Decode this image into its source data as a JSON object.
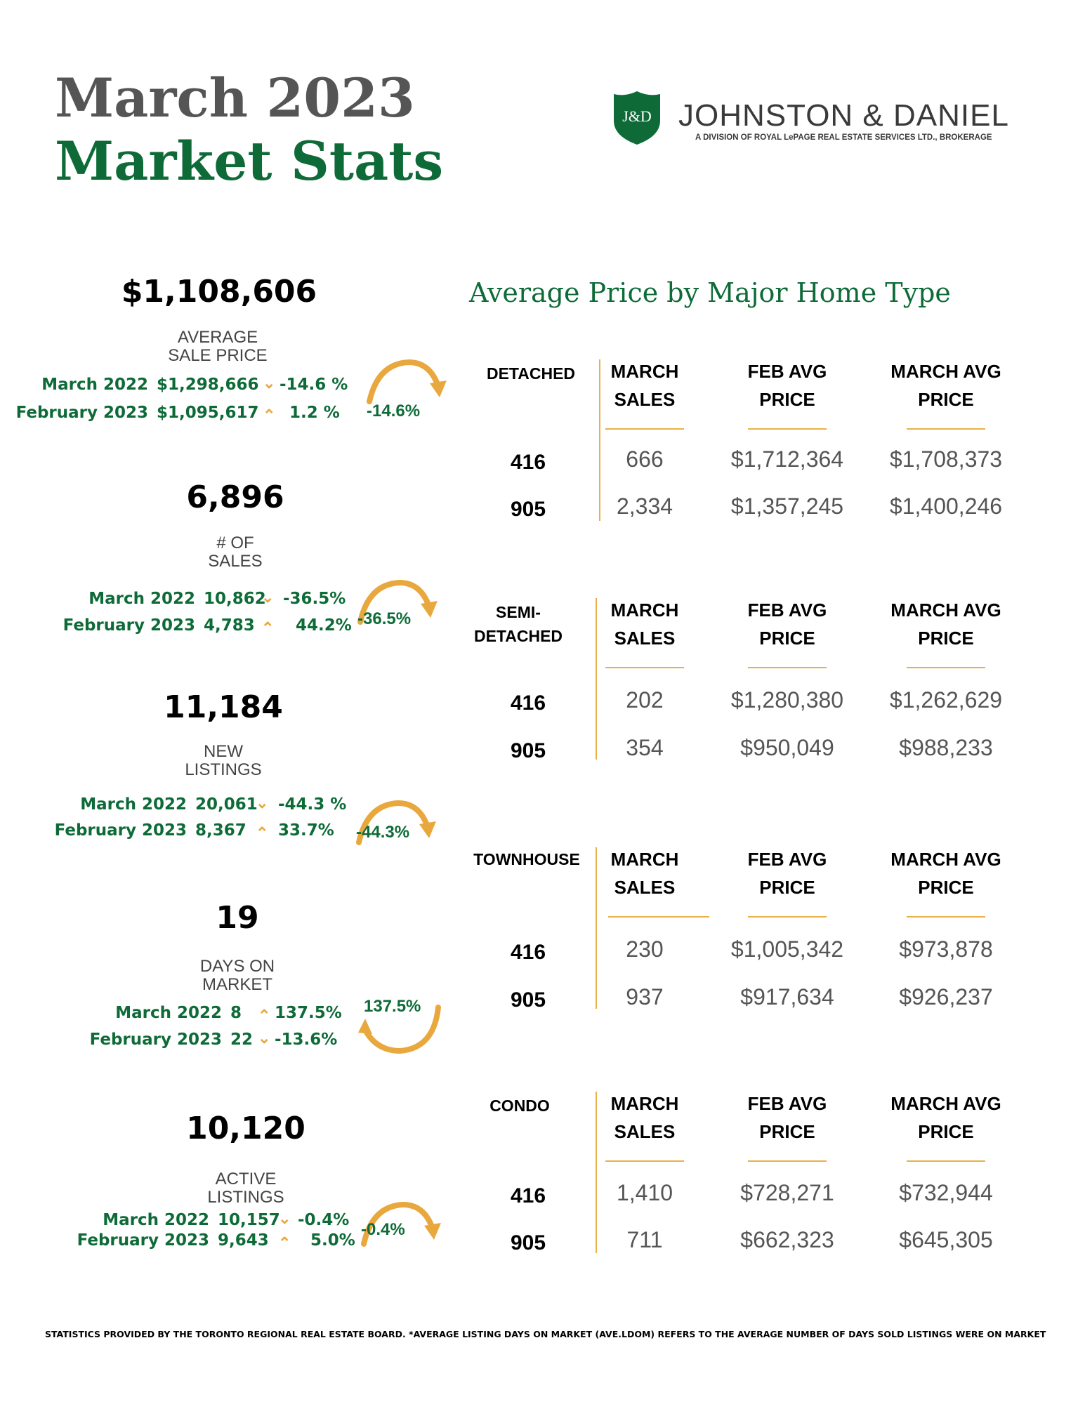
{
  "header": {
    "title_line1": "March 2023",
    "title_line2": "Market Stats",
    "brand_name": "JOHNSTON & DANIEL",
    "brand_sub": "A DIVISION OF ROYAL LePAGE REAL ESTATE SERVICES LTD., BROKERAGE",
    "logo_text": "J&D"
  },
  "stats": [
    {
      "value": "$1,108,606",
      "label_line1": "AVERAGE",
      "label_line2": "SALE PRICE",
      "row1": {
        "period": "March 2022",
        "value": "$1,298,666",
        "direction": "down",
        "change": "-14.6  %"
      },
      "row2": {
        "period": "February 2023",
        "value": "$1,095,617",
        "direction": "up",
        "change": "1.2 %"
      },
      "arc_label": "-14.6%"
    },
    {
      "value": "6,896",
      "label_line1": "# OF",
      "label_line2": "SALES",
      "row1": {
        "period": "March 2022",
        "value": "10,862",
        "direction": "down",
        "change": "-36.5%"
      },
      "row2": {
        "period": "February 2023",
        "value": "4,783",
        "direction": "up",
        "change": "44.2%"
      },
      "arc_label": "-36.5%"
    },
    {
      "value": "11,184",
      "label_line1": "NEW",
      "label_line2": "LISTINGS",
      "row1": {
        "period": "March 2022",
        "value": "20,061",
        "direction": "down",
        "change": "-44.3 %"
      },
      "row2": {
        "period": "February 2023",
        "value": "8,367",
        "direction": "up",
        "change": "33.7%"
      },
      "arc_label": "-44.3%"
    },
    {
      "value": "19",
      "label_line1": "DAYS ON",
      "label_line2": "MARKET",
      "row1": {
        "period": "March 2022",
        "value": "8",
        "direction": "up",
        "change": "137.5%"
      },
      "row2": {
        "period": "February 2023",
        "value": "22",
        "direction": "down",
        "change": "-13.6%"
      },
      "arc_label": "137.5%"
    },
    {
      "value": "10,120",
      "label_line1": "ACTIVE",
      "label_line2": "LISTINGS",
      "row1": {
        "period": "March  2022",
        "value": "10,157",
        "direction": "down",
        "change": "-0.4%"
      },
      "row2": {
        "period": "February 2023",
        "value": "9,643",
        "direction": "up",
        "change": "5.0%"
      },
      "arc_label": "-0.4%"
    }
  ],
  "table": {
    "title": "Average Price by Major Home Type",
    "col1_line1": "MARCH",
    "col1_line2": "SALES",
    "col2_line1": "FEB AVG",
    "col2_line2": "PRICE",
    "col3_line1": "MARCH AVG",
    "col3_line2": "PRICE",
    "sections": [
      {
        "type_line1": "DETACHED",
        "type_line2": "",
        "rows": [
          {
            "region": "416",
            "sales": "666",
            "feb": "$1,712,364",
            "march": "$1,708,373"
          },
          {
            "region": "905",
            "sales": "2,334",
            "feb": "$1,357,245",
            "march": "$1,400,246"
          }
        ]
      },
      {
        "type_line1": "SEMI-",
        "type_line2": "DETACHED",
        "rows": [
          {
            "region": "416",
            "sales": "202",
            "feb": "$1,280,380",
            "march": "$1,262,629"
          },
          {
            "region": "905",
            "sales": "354",
            "feb": "$950,049",
            "march": "$988,233"
          }
        ]
      },
      {
        "type_line1": "TOWNHOUSE",
        "type_line2": "",
        "rows": [
          {
            "region": "416",
            "sales": "230",
            "feb": "$1,005,342",
            "march": "$973,878"
          },
          {
            "region": "905",
            "sales": "937",
            "feb": "$917,634",
            "march": "$926,237"
          }
        ]
      },
      {
        "type_line1": "CONDO",
        "type_line2": "",
        "rows": [
          {
            "region": "416",
            "sales": "1,410",
            "feb": "$728,271",
            "march": "$732,944"
          },
          {
            "region": "905",
            "sales": "711",
            "feb": "$662,323",
            "march": "$645,305"
          }
        ]
      }
    ]
  },
  "footer": "STATISTICS PROVIDED BY THE TORONTO REGIONAL REAL ESTATE BOARD. *AVERAGE LISTING DAYS ON MARKET (AVE.LDOM) REFERS TO THE AVERAGE NUMBER OF DAYS SOLD LISTINGS WERE ON MARKET",
  "colors": {
    "brand_green": "#0e6b38",
    "accent_gold": "#e9a83e",
    "title_gray": "#555555"
  }
}
